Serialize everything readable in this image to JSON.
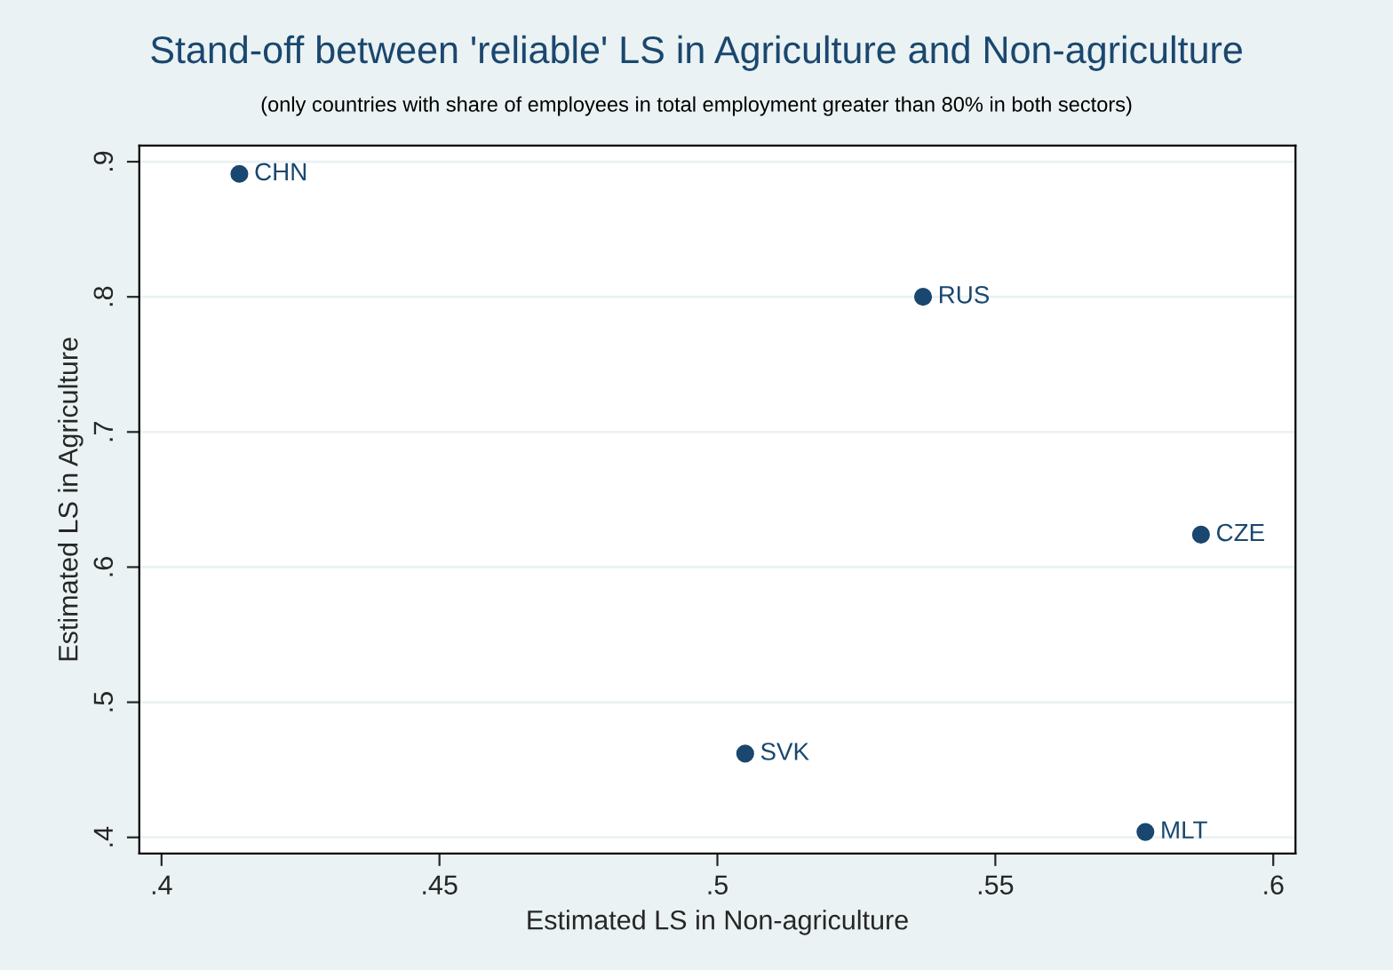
{
  "chart_data": {
    "type": "scatter",
    "title": "Stand-off between 'reliable' LS in Agriculture and Non-agriculture",
    "subtitle": "(only countries with share of employees in total employment greater than 80% in both sectors)",
    "xlabel": "Estimated LS in Non-agriculture",
    "ylabel": "Estimated LS in Agriculture",
    "x": [
      0.414,
      0.537,
      0.587,
      0.505,
      0.577
    ],
    "series": [
      {
        "color": "#1a476f",
        "values": [
          0.891,
          0.8,
          0.624,
          0.462,
          0.404
        ]
      }
    ],
    "annotations": [
      {
        "text": "CHN",
        "x": 0.414,
        "y": 0.891
      },
      {
        "text": "RUS",
        "x": 0.537,
        "y": 0.8
      },
      {
        "text": "CZE",
        "x": 0.587,
        "y": 0.624
      },
      {
        "text": "SVK",
        "x": 0.505,
        "y": 0.462
      },
      {
        "text": "MLT",
        "x": 0.577,
        "y": 0.404
      }
    ],
    "xlim": [
      0.396,
      0.604
    ],
    "ylim": [
      0.388,
      0.912
    ],
    "xticks": [
      {
        "value": 0.4,
        "label": ".4"
      },
      {
        "value": 0.45,
        "label": ".45"
      },
      {
        "value": 0.5,
        "label": ".5"
      },
      {
        "value": 0.55,
        "label": ".55"
      },
      {
        "value": 0.6,
        "label": ".6"
      }
    ],
    "yticks": [
      {
        "value": 0.4,
        "label": ".4"
      },
      {
        "value": 0.5,
        "label": ".5"
      },
      {
        "value": 0.6,
        "label": ".6"
      },
      {
        "value": 0.7,
        "label": ".7"
      },
      {
        "value": 0.8,
        "label": ".8"
      },
      {
        "value": 0.9,
        "label": ".9"
      }
    ],
    "grid": "y",
    "marker": "circle",
    "legend": false
  }
}
